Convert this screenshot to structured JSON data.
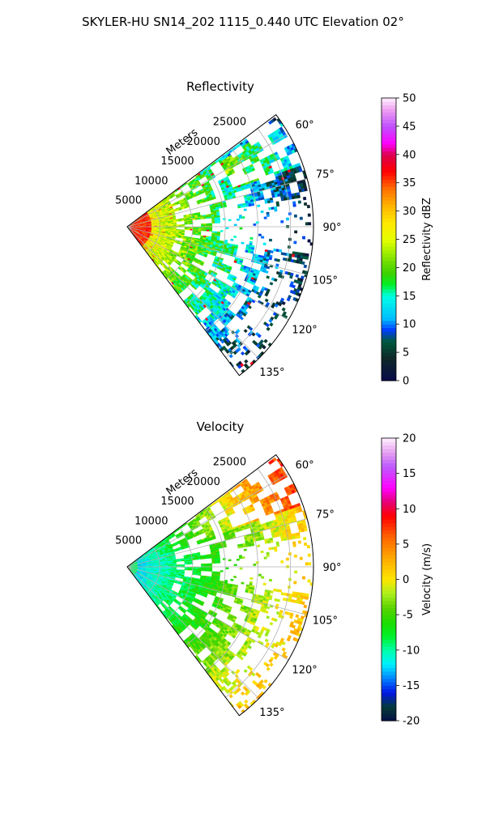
{
  "title": "SKYLER-HU  SN14_202  1115_0.440 UTC Elevation 02°",
  "colors": {
    "background": "#ffffff",
    "grid": "#b0b0b0",
    "text": "#000000"
  },
  "chart_data": [
    {
      "type": "heatmap",
      "projection": "polar-sector",
      "title": "Reflectivity",
      "radial_label": "Meters",
      "radial_ticks": [
        5000,
        10000,
        15000,
        20000,
        25000
      ],
      "angle_ticks": [
        "60°",
        "75°",
        "90°",
        "105°",
        "120°",
        "135°"
      ],
      "angle_range_deg": [
        53,
        143
      ],
      "rmax": 28500,
      "colorbar": {
        "label": "Reflectivity dBZ",
        "range": [
          0,
          50
        ],
        "ticks": [
          0,
          5,
          10,
          15,
          20,
          25,
          30,
          35,
          40,
          45,
          50
        ],
        "colormap": "pyart_NWSRef"
      }
    },
    {
      "type": "heatmap",
      "projection": "polar-sector",
      "title": "Velocity",
      "radial_label": "Meters",
      "radial_ticks": [
        5000,
        10000,
        15000,
        20000,
        25000
      ],
      "angle_ticks": [
        "60°",
        "75°",
        "90°",
        "105°",
        "120°",
        "135°"
      ],
      "angle_range_deg": [
        53,
        143
      ],
      "rmax": 28500,
      "colorbar": {
        "label": "Velocity (m/s)",
        "range": [
          -20,
          20
        ],
        "ticks": [
          -20,
          -15,
          -10,
          -5,
          0,
          5,
          10,
          15,
          20
        ],
        "colormap": "pyart_NWSVel"
      }
    }
  ]
}
